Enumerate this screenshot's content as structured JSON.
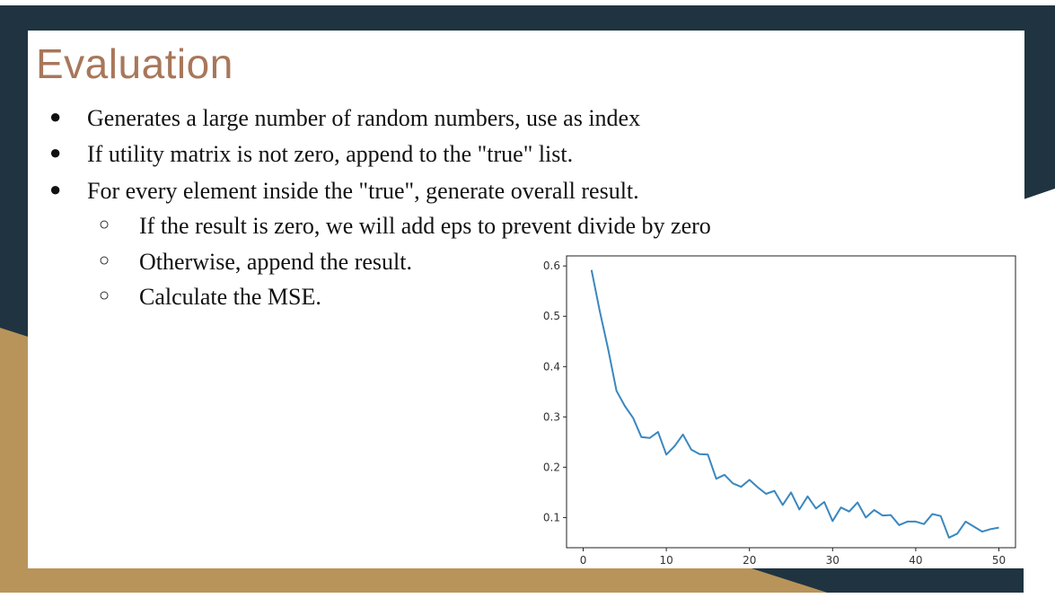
{
  "slide": {
    "title": "Evaluation",
    "bullets": [
      "Generates a large number of random numbers, use as index",
      "If utility matrix is not zero, append to the \"true\" list.",
      "For every element inside the \"true\", generate overall result."
    ],
    "sub_bullets": [
      "If the result is zero, we will add eps to prevent divide by zero",
      "Otherwise, append the result.",
      "Calculate the MSE."
    ],
    "bullet_glyph": "●",
    "sub_bullet_glyph": "○"
  },
  "colors": {
    "dark_band": "#1f3440",
    "gold_band": "#b8945a",
    "title": "#a8775a",
    "line": "#3a87c0"
  },
  "chart_data": {
    "type": "line",
    "x": [
      1,
      2,
      3,
      4,
      5,
      6,
      7,
      8,
      9,
      10,
      11,
      12,
      13,
      14,
      15,
      16,
      17,
      18,
      19,
      20,
      21,
      22,
      23,
      24,
      25,
      26,
      27,
      28,
      29,
      30,
      31,
      32,
      33,
      34,
      35,
      36,
      37,
      38,
      39,
      40,
      41,
      42,
      43,
      44,
      45,
      46,
      47,
      48,
      49,
      50
    ],
    "series": [
      {
        "values": [
          0.592,
          0.51,
          0.435,
          0.352,
          0.322,
          0.298,
          0.26,
          0.258,
          0.27,
          0.225,
          0.242,
          0.265,
          0.235,
          0.226,
          0.225,
          0.177,
          0.185,
          0.168,
          0.161,
          0.175,
          0.16,
          0.147,
          0.153,
          0.125,
          0.15,
          0.116,
          0.142,
          0.118,
          0.131,
          0.093,
          0.12,
          0.112,
          0.13,
          0.1,
          0.115,
          0.104,
          0.105,
          0.085,
          0.092,
          0.092,
          0.087,
          0.107,
          0.103,
          0.06,
          0.068,
          0.092,
          0.082,
          0.072,
          0.077,
          0.08
        ]
      }
    ],
    "xlim": [
      -2,
      52
    ],
    "ylim": [
      0.04,
      0.62
    ],
    "xticks": [
      0,
      10,
      20,
      30,
      40,
      50
    ],
    "yticks": [
      0.1,
      0.2,
      0.3,
      0.4,
      0.5,
      0.6
    ],
    "xlabel": "",
    "ylabel": "",
    "title": "",
    "grid": false
  }
}
